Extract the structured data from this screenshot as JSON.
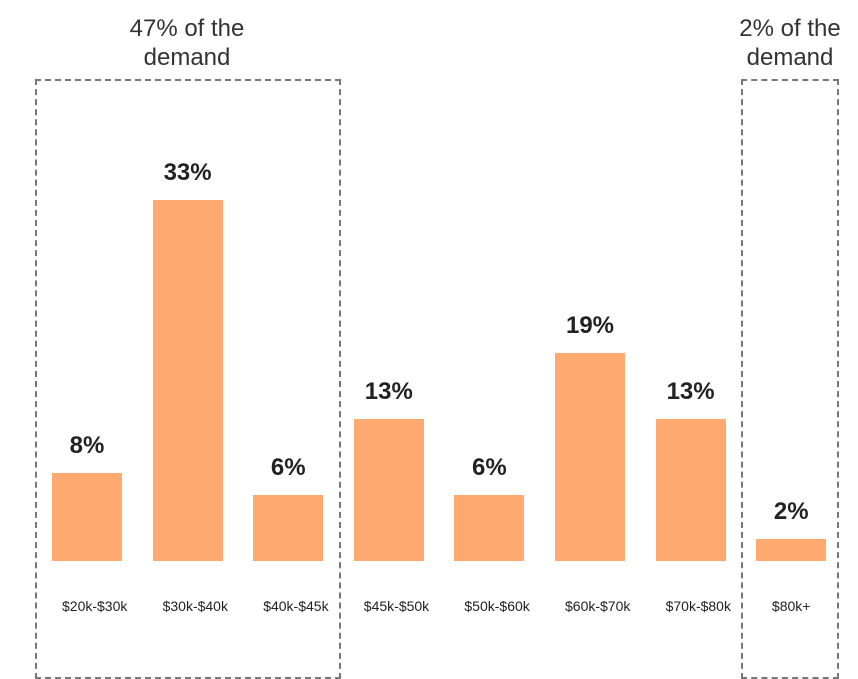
{
  "chart_data": {
    "type": "bar",
    "categories": [
      "$20k-$30k",
      "$30k-$40k",
      "$40k-$45k",
      "$45k-$50k",
      "$50k-$60k",
      "$60k-$70k",
      "$70k-$80k",
      "$80k+"
    ],
    "values": [
      8,
      33,
      6,
      13,
      6,
      19,
      13,
      2
    ],
    "value_labels": [
      "8%",
      "33%",
      "6%",
      "13%",
      "6%",
      "19%",
      "13%",
      "2%"
    ],
    "color": "#fda96f",
    "annotations": [
      "47% of the demand",
      "2% of the demand"
    ]
  }
}
